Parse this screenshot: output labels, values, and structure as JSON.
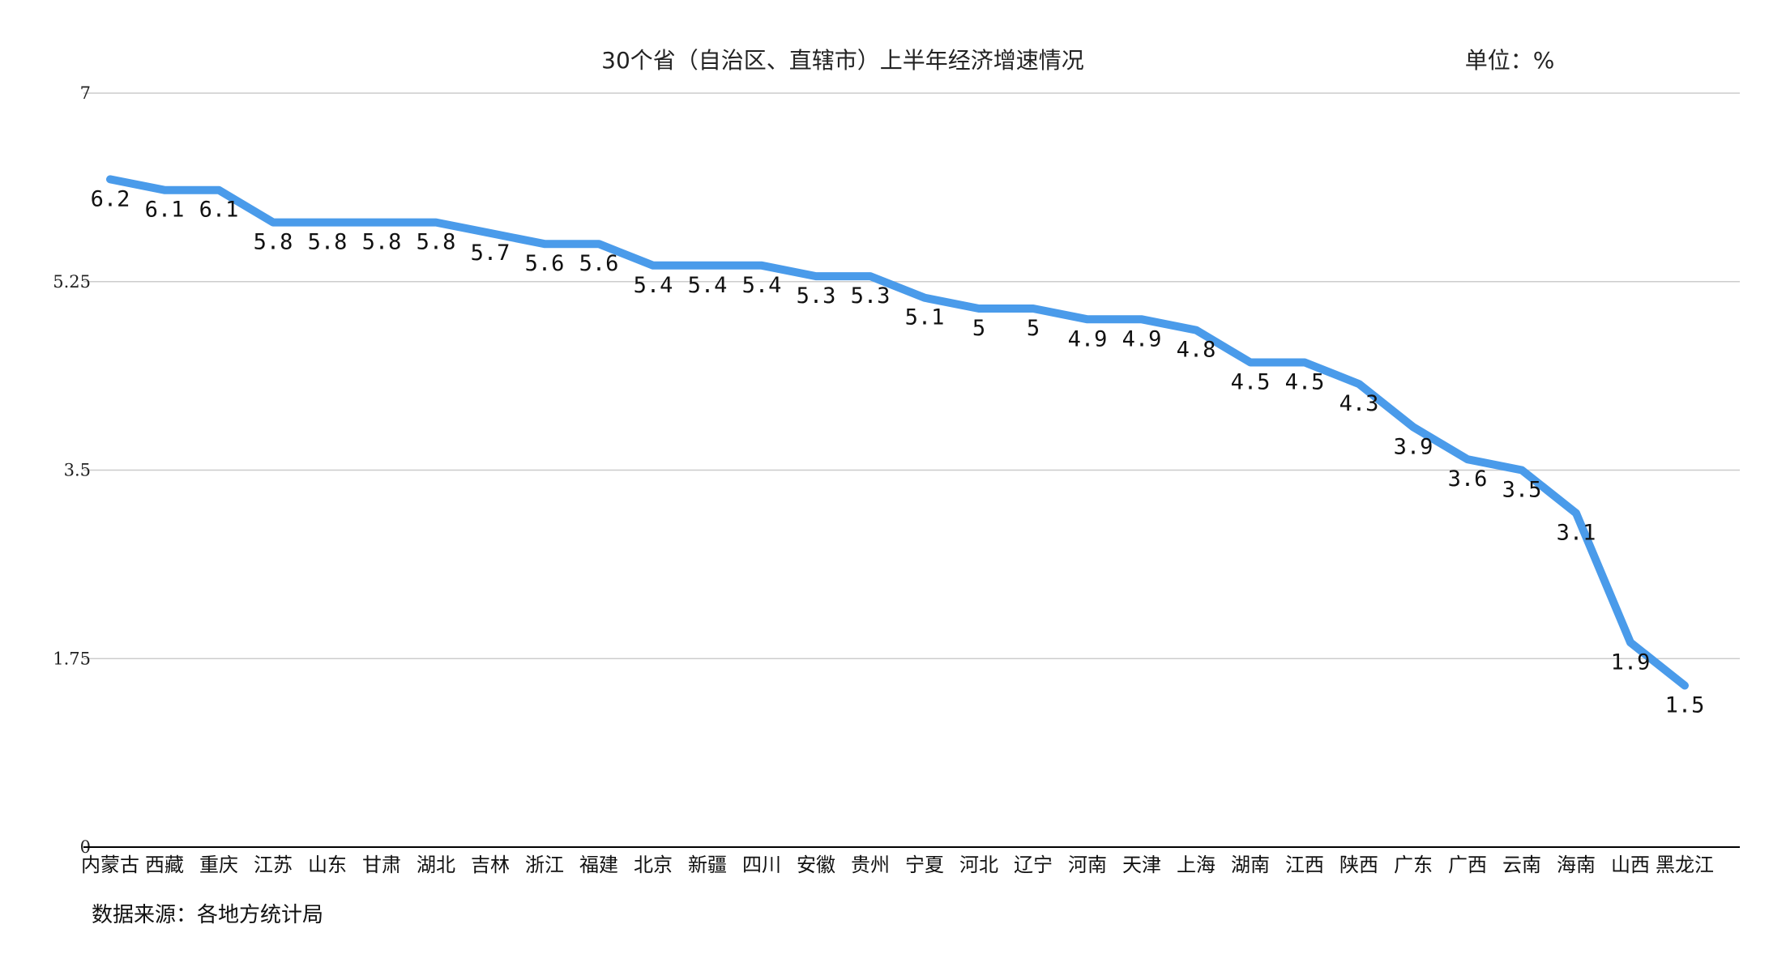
{
  "chart_data": {
    "type": "line",
    "title": "30个省（自治区、直辖市）上半年经济增速情况",
    "unit_label": "单位：%",
    "source": "数据来源：各地方统计局",
    "categories": [
      "内蒙古",
      "西藏",
      "重庆",
      "江苏",
      "山东",
      "甘肃",
      "湖北",
      "吉林",
      "浙江",
      "福建",
      "北京",
      "新疆",
      "四川",
      "安徽",
      "贵州",
      "宁夏",
      "河北",
      "辽宁",
      "河南",
      "天津",
      "上海",
      "湖南",
      "江西",
      "陕西",
      "广东",
      "广西",
      "云南",
      "海南",
      "山西",
      "黑龙江"
    ],
    "values": [
      6.2,
      6.1,
      6.1,
      5.8,
      5.8,
      5.8,
      5.8,
      5.7,
      5.6,
      5.6,
      5.4,
      5.4,
      5.4,
      5.3,
      5.3,
      5.1,
      5,
      5,
      4.9,
      4.9,
      4.8,
      4.5,
      4.5,
      4.3,
      3.9,
      3.6,
      3.5,
      3.1,
      1.9,
      1.5
    ],
    "value_labels": [
      "6.2",
      "6.1",
      "6.1",
      "5.8",
      "5.8",
      "5.8",
      "5.8",
      "5.7",
      "5.6",
      "5.6",
      "5.4",
      "5.4",
      "5.4",
      "5.3",
      "5.3",
      "5.1",
      "5",
      "5",
      "4.9",
      "4.9",
      "4.8",
      "4.5",
      "4.5",
      "4.3",
      "3.9",
      "3.6",
      "3.5",
      "3.1",
      "1.9",
      "1.5"
    ],
    "yticks": [
      "0",
      "1.75",
      "3.5",
      "5.25",
      "7"
    ],
    "ylim": [
      0,
      7
    ],
    "grid": true,
    "line_color": "#4a9bea",
    "grid_color": "#cccccc",
    "axis_color": "#000000"
  }
}
